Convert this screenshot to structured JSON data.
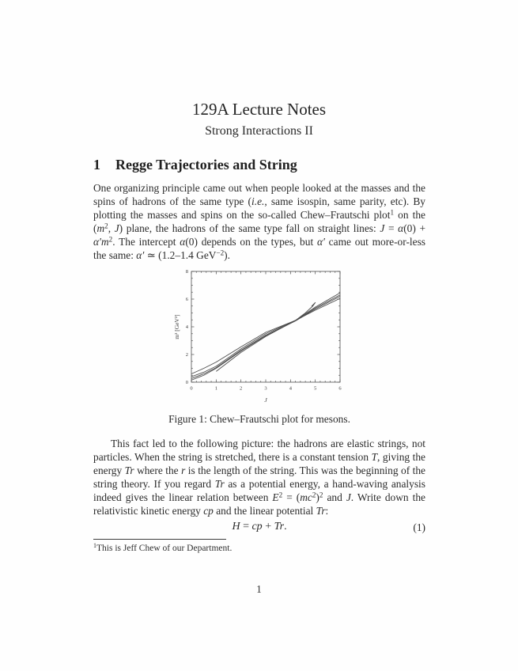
{
  "doc": {
    "title": "129A Lecture Notes",
    "subtitle": "Strong Interactions II"
  },
  "section": {
    "number": "1",
    "title": "Regge Trajectories and String"
  },
  "paragraphs": [
    {
      "segments": [
        {
          "v": "One organizing principle came out when people looked at the masses and the spins of hadrons of the same type ("
        },
        {
          "v": "i.e.",
          "f": "i"
        },
        {
          "v": ", same isospin, same parity, etc). By plotting the masses and spins on the so-called Chew–Frautschi plot"
        },
        {
          "v": "1",
          "f": "sup"
        },
        {
          "v": " on the ("
        },
        {
          "v": "m",
          "f": "i"
        },
        {
          "v": "2",
          "f": "sup"
        },
        {
          "v": ", "
        },
        {
          "v": "J",
          "f": "i"
        },
        {
          "v": ") plane, the hadrons of the same type fall on straight lines: "
        },
        {
          "v": "J",
          "f": "i"
        },
        {
          "v": " = "
        },
        {
          "v": "α",
          "f": "i"
        },
        {
          "v": "(0) + "
        },
        {
          "v": "α′",
          "f": "i"
        },
        {
          "v": "m",
          "f": "i"
        },
        {
          "v": "2",
          "f": "sup"
        },
        {
          "v": ". The intercept "
        },
        {
          "v": "α",
          "f": "i"
        },
        {
          "v": "(0) depends on the types, but "
        },
        {
          "v": "α′",
          "f": "i"
        },
        {
          "v": " came out more-or-less the same: "
        },
        {
          "v": "α′",
          "f": "i"
        },
        {
          "v": " ≃ (1.2–1.4 GeV"
        },
        {
          "v": "−2",
          "f": "sup"
        },
        {
          "v": ")."
        }
      ]
    },
    {
      "segments": [
        {
          "v": "This fact led to the following picture: the hadrons are elastic strings, not particles. When the string is stretched, there is a constant tension "
        },
        {
          "v": "T",
          "f": "i"
        },
        {
          "v": ", giving the energy "
        },
        {
          "v": "Tr",
          "f": "i"
        },
        {
          "v": " where the "
        },
        {
          "v": "r",
          "f": "i"
        },
        {
          "v": " is the length of the string. This was the beginning of the string theory. If you regard "
        },
        {
          "v": "Tr",
          "f": "i"
        },
        {
          "v": " as a potential energy, a hand-waving analysis indeed gives the linear relation between "
        },
        {
          "v": "E",
          "f": "i"
        },
        {
          "v": "2",
          "f": "sup"
        },
        {
          "v": " = ("
        },
        {
          "v": "mc",
          "f": "i"
        },
        {
          "v": "2",
          "f": "sup"
        },
        {
          "v": ")"
        },
        {
          "v": "2",
          "f": "sup"
        },
        {
          "v": " and "
        },
        {
          "v": "J",
          "f": "i"
        },
        {
          "v": ". Write down the relativistic kinetic energy "
        },
        {
          "v": "cp",
          "f": "i"
        },
        {
          "v": " and the linear potential "
        },
        {
          "v": "Tr",
          "f": "i"
        },
        {
          "v": ":"
        }
      ]
    }
  ],
  "figure": {
    "caption": "Figure 1: Chew–Frautschi plot for mesons."
  },
  "equation": {
    "segments": [
      {
        "v": "H",
        "f": "i"
      },
      {
        "v": " = "
      },
      {
        "v": "cp",
        "f": "i"
      },
      {
        "v": " + "
      },
      {
        "v": "Tr",
        "f": "i"
      },
      {
        "v": "."
      }
    ],
    "number": "(1)"
  },
  "footnote": {
    "marker": "1",
    "text": "This is Jeff Chew of our Department."
  },
  "page_number": "1",
  "colors": {
    "text": "#2b2b2b",
    "plot_line": "#4d4d4d"
  },
  "chart_data": {
    "type": "line",
    "title": "",
    "xlabel": "J",
    "ylabel": "m² [GeV²]",
    "xlim": [
      0,
      6
    ],
    "ylim": [
      0,
      8
    ],
    "xticks": [
      0,
      1,
      2,
      3,
      4,
      5,
      6
    ],
    "yticks": [
      0,
      2,
      4,
      6,
      8
    ],
    "x_minor_step": 0.2,
    "y_minor_step": 0.5,
    "grid": false,
    "legend": false,
    "line_color": "#4d4d4d",
    "series": [
      {
        "name": "regge-trajectory-1",
        "x": [
          0,
          0.5,
          1,
          2,
          3,
          4.2,
          5,
          6
        ],
        "y": [
          0.6,
          1.0,
          1.45,
          2.55,
          3.6,
          4.46,
          5.2,
          6.05
        ]
      },
      {
        "name": "regge-trajectory-2",
        "x": [
          0,
          0.5,
          1,
          2,
          3,
          4.2,
          5,
          6
        ],
        "y": [
          0.4,
          0.72,
          1.15,
          2.4,
          3.5,
          4.46,
          5.42,
          6.45
        ]
      },
      {
        "name": "regge-trajectory-3",
        "x": [
          0,
          0.5,
          1,
          2,
          3,
          4.2,
          5,
          6
        ],
        "y": [
          0.27,
          0.6,
          1.05,
          2.3,
          3.4,
          4.44,
          5.35,
          6.3
        ]
      },
      {
        "name": "regge-trajectory-4",
        "x": [
          0,
          0.5,
          1,
          2,
          3,
          4.2,
          5,
          6
        ],
        "y": [
          0.15,
          0.5,
          1.0,
          2.25,
          3.35,
          4.42,
          5.28,
          6.2
        ]
      },
      {
        "name": "regge-trajectory-5",
        "x": [
          1,
          2,
          3,
          4.2,
          4.6,
          4.9,
          5.0,
          4.85
        ],
        "y": [
          0.78,
          2.15,
          3.3,
          4.46,
          5.0,
          5.5,
          5.75,
          5.48
        ]
      }
    ]
  }
}
